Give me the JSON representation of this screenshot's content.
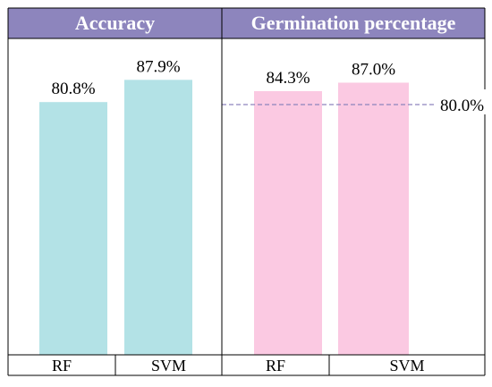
{
  "chart_data": [
    {
      "type": "bar",
      "title": "Accuracy",
      "categories": [
        "RF",
        "SVM"
      ],
      "values": [
        80.8,
        87.9
      ],
      "value_labels": [
        "80.8%",
        "87.9%"
      ],
      "ylim": [
        0,
        100
      ],
      "xlabel": "",
      "ylabel": "",
      "grid": false,
      "bar_color": "#b3e2e6",
      "header_color": "#8d85bd"
    },
    {
      "type": "bar",
      "title": "Germination percentage",
      "categories": [
        "RF",
        "SVM"
      ],
      "values": [
        84.3,
        87.0
      ],
      "value_labels": [
        "84.3%",
        "87.0%"
      ],
      "ylim": [
        0,
        100
      ],
      "xlabel": "",
      "ylabel": "",
      "grid": false,
      "bar_color": "#fbc9e2",
      "header_color": "#8d85bd",
      "reference_line": {
        "value": 80.0,
        "label": "80.0%",
        "color": "#8d85bd",
        "style": "dashed"
      }
    }
  ]
}
